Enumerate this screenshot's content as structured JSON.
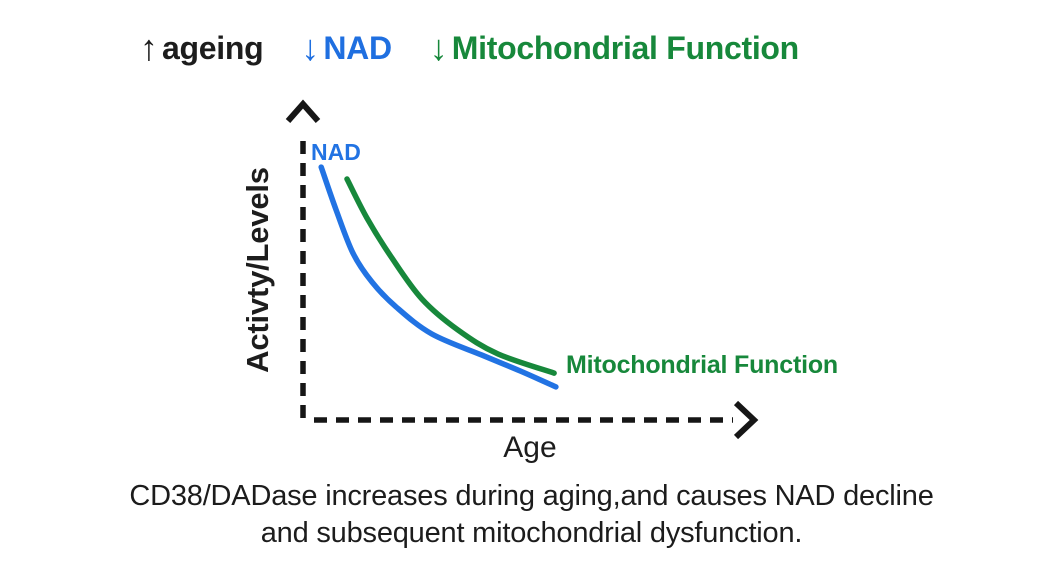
{
  "header": {
    "items": [
      {
        "arrow": "↑",
        "label": "ageing",
        "color": "#1d1d1d"
      },
      {
        "arrow": "↓",
        "label": "NAD",
        "color": "#1f6fe0"
      },
      {
        "arrow": "↓",
        "label": "Mitochondrial Function",
        "color": "#17883b"
      }
    ]
  },
  "chart_data": {
    "type": "line",
    "title": "",
    "xlabel": "Age",
    "ylabel": "Activty/Levels",
    "x_axis": {
      "numeric": false,
      "ticks": [],
      "style": "dashed line with arrowhead"
    },
    "y_axis": {
      "numeric": false,
      "ticks": [],
      "style": "dashed line with arrowhead"
    },
    "grid": false,
    "legend_position": "inline curve labels",
    "axis_color": "#161616",
    "series": [
      {
        "id": "nad",
        "name": "NAD",
        "color": "#2273e3",
        "label_position": "start-top",
        "points_norm": [
          [
            0.04,
            0.803
          ],
          [
            0.073,
            0.667
          ],
          [
            0.11,
            0.53
          ],
          [
            0.152,
            0.438
          ],
          [
            0.205,
            0.359
          ],
          [
            0.284,
            0.273
          ],
          [
            0.394,
            0.206
          ],
          [
            0.478,
            0.156
          ],
          [
            0.557,
            0.105
          ]
        ]
      },
      {
        "id": "mito",
        "name": "Mitochondrial Function",
        "color": "#17883b",
        "label_position": "end-right",
        "points_norm": [
          [
            0.097,
            0.765
          ],
          [
            0.141,
            0.641
          ],
          [
            0.196,
            0.514
          ],
          [
            0.262,
            0.384
          ],
          [
            0.341,
            0.286
          ],
          [
            0.429,
            0.21
          ],
          [
            0.553,
            0.149
          ]
        ]
      }
    ],
    "trend": "Both curves decline steeply at younger ages and flatten at older ages; the NAD curve lies below the Mitochondrial Function curve."
  },
  "caption": {
    "line1": "CD38/DADase increases during aging,and causes NAD decline",
    "line2": "and subsequent mitochondrial dysfunction."
  }
}
